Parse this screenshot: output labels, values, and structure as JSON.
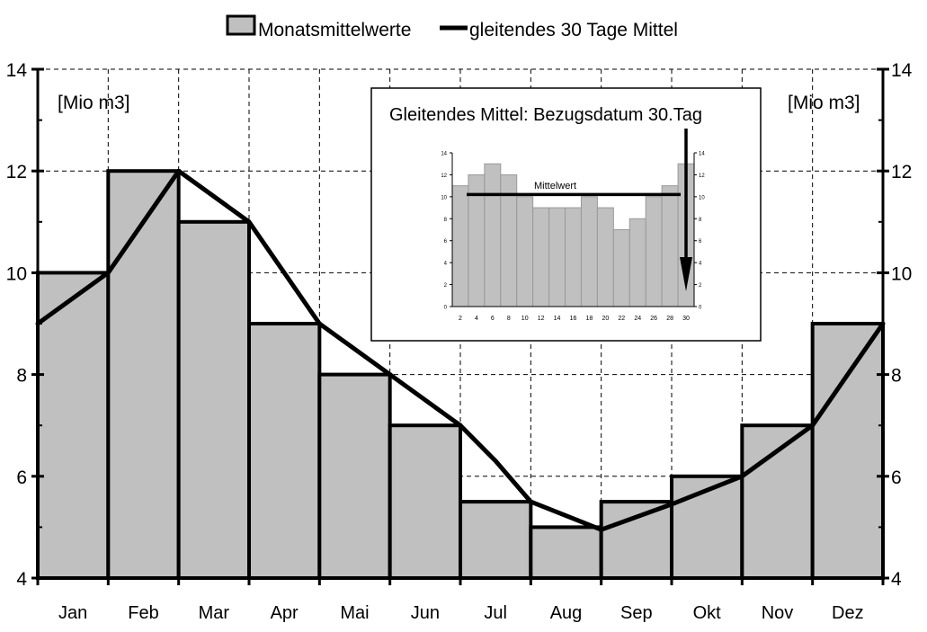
{
  "chart_data": [
    {
      "type": "bar",
      "legend": {
        "position": "top",
        "entries": [
          {
            "label": "Monatsmittelwerte",
            "kind": "bar"
          },
          {
            "label": "gleitendes 30 Tage Mittel",
            "kind": "line"
          }
        ]
      },
      "unit_label_left": "[Mio m3]",
      "unit_label_right": "[Mio m3]",
      "categories": [
        "Jan",
        "Feb",
        "Mar",
        "Apr",
        "Mai",
        "Jun",
        "Jul",
        "Aug",
        "Sep",
        "Okt",
        "Nov",
        "Dez"
      ],
      "series": [
        {
          "name": "Monatsmittelwerte",
          "type": "bar",
          "values": [
            10,
            12,
            11,
            9,
            8,
            7,
            5.5,
            5,
            5.5,
            6,
            7,
            9
          ]
        },
        {
          "name": "gleitendes 30 Tage Mittel",
          "type": "line",
          "x": [
            0,
            1,
            1.5,
            2,
            3,
            4,
            5,
            6,
            6.5,
            7,
            8,
            9,
            10,
            11,
            11.5,
            12
          ],
          "values": [
            9,
            10,
            11,
            12,
            11,
            9,
            8,
            7,
            6.3,
            5.5,
            4.95,
            5.45,
            6,
            7,
            8,
            9
          ]
        }
      ],
      "ylim": [
        4,
        14
      ],
      "yticks": [
        4,
        6,
        8,
        10,
        12,
        14
      ],
      "grid": true,
      "colors": {
        "bar_fill": "#c0c0c0",
        "stroke": "#000000"
      }
    },
    {
      "type": "bar",
      "title": "Gleitendes Mittel: Bezugsdatum 30.Tag",
      "annotation": "Mittelwert",
      "mean_value": 10.2,
      "categories": [
        2,
        4,
        6,
        8,
        10,
        12,
        14,
        16,
        18,
        20,
        22,
        24,
        26,
        28,
        30
      ],
      "values": [
        11,
        12,
        13,
        12,
        10,
        9,
        9,
        9,
        10,
        9,
        7,
        8,
        10,
        11,
        13
      ],
      "xticks": [
        2,
        4,
        6,
        8,
        10,
        12,
        14,
        16,
        18,
        20,
        22,
        24,
        26,
        28,
        30
      ],
      "ylim": [
        0,
        14
      ],
      "yticks": [
        0,
        2,
        4,
        6,
        8,
        10,
        12,
        14
      ],
      "colors": {
        "bar_fill": "#c0c0c0",
        "bar_stroke": "#999999"
      }
    }
  ]
}
